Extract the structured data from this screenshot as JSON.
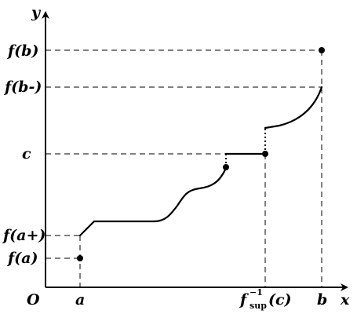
{
  "axes": {
    "x_label": "x",
    "y_label": "y",
    "origin_label": "O"
  },
  "x_ticks": {
    "a": "a",
    "finv_f": "f",
    "finv_sup": "−1",
    "finv_sub": "sup",
    "finv_arg": "(c)",
    "b": "b"
  },
  "y_ticks": {
    "fb": "f(b)",
    "fbminus": "f(b-)",
    "c": "c",
    "faplus": "f(a+)",
    "fa": "f(a)"
  }
}
